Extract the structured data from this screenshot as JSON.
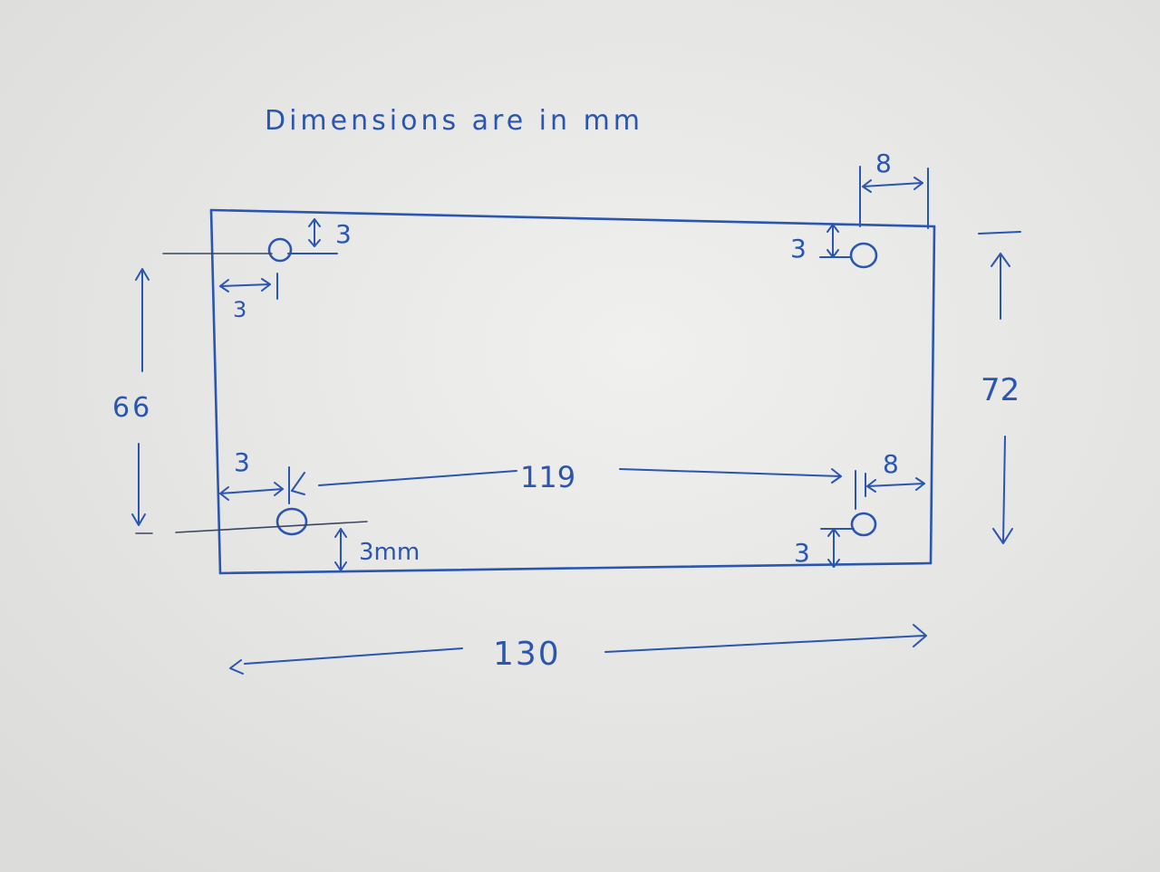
{
  "note": "Dimensions are in mm",
  "colors": {
    "ink": "#2a55b0",
    "paper": "#e8e8e6"
  },
  "dimensions": {
    "overall_width": "130",
    "overall_height": "72",
    "hole_vertical_spacing": "66",
    "hole_horizontal_spacing": "119",
    "top_left_hole_top_offset": "3",
    "top_left_hole_left_offset": "3",
    "top_right_hole_right_offset": "8",
    "top_right_hole_top_offset": "3",
    "bottom_left_hole_left_offset": "3",
    "bottom_left_hole_bottom_offset": "3mm",
    "bottom_right_hole_right_offset": "8",
    "bottom_right_hole_bottom_offset": "3"
  }
}
